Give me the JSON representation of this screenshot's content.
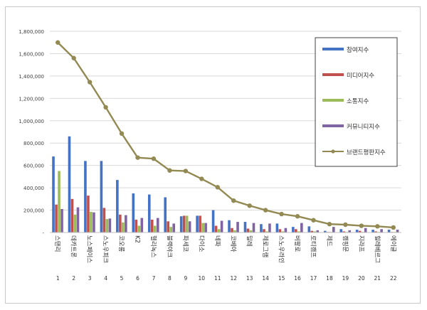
{
  "chart_data": {
    "type": "bar",
    "title": "",
    "xlabel": "",
    "ylabel": "",
    "ylim": [
      0,
      1800000
    ],
    "yticks": [
      "-",
      "200,000",
      "400,000",
      "600,000",
      "800,000",
      "1,000,000",
      "1,200,000",
      "1,400,000",
      "1,600,000",
      "1,800,000"
    ],
    "grid": true,
    "legend_position": "right",
    "ranks": [
      "1",
      "2",
      "3",
      "4",
      "5",
      "6",
      "7",
      "8",
      "9",
      "10",
      "11",
      "12",
      "13",
      "14",
      "15",
      "16",
      "17",
      "18",
      "19",
      "20",
      "21",
      "22"
    ],
    "categories": [
      "스탠리",
      "데카트론",
      "노스페이스",
      "스노우피크",
      "코오롱",
      "K2",
      "헬리녹스",
      "블랙야크",
      "파세코",
      "다이소",
      "네파",
      "코베아",
      "밀레",
      "제로그램",
      "스노우라인",
      "버팔로",
      "로티캠프",
      "제드",
      "캠핑문",
      "지라프",
      "힐레베르그",
      "에이글"
    ],
    "series": [
      {
        "name": "참여지수",
        "kind": "bar",
        "color": "#4472c4",
        "values": [
          680000,
          860000,
          640000,
          640000,
          470000,
          350000,
          340000,
          315000,
          145000,
          150000,
          200000,
          110000,
          95000,
          75000,
          80000,
          50000,
          55000,
          15000,
          30000,
          25000,
          25000,
          25000
        ]
      },
      {
        "name": "미디어지수",
        "kind": "bar",
        "color": "#c0504d",
        "values": [
          250000,
          300000,
          330000,
          220000,
          160000,
          115000,
          115000,
          100000,
          150000,
          150000,
          60000,
          40000,
          35000,
          30000,
          30000,
          30000,
          15000,
          5000,
          10000,
          15000,
          10000,
          5000
        ]
      },
      {
        "name": "소통지수",
        "kind": "bar",
        "color": "#9bbb59",
        "values": [
          550000,
          160000,
          185000,
          120000,
          90000,
          60000,
          60000,
          50000,
          150000,
          85000,
          30000,
          20000,
          20000,
          10000,
          10000,
          10000,
          10000,
          5000,
          5000,
          5000,
          5000,
          5000
        ]
      },
      {
        "name": "커뮤니티지수",
        "kind": "bar",
        "color": "#8064a2",
        "values": [
          210000,
          225000,
          180000,
          125000,
          155000,
          130000,
          130000,
          80000,
          100000,
          85000,
          105000,
          95000,
          85000,
          80000,
          40000,
          85000,
          20000,
          50000,
          20000,
          40000,
          30000,
          25000
        ]
      },
      {
        "name": "브랜드평판지수",
        "kind": "line",
        "color": "#938953",
        "values": [
          1700000,
          1560000,
          1345000,
          1120000,
          885000,
          670000,
          660000,
          555000,
          550000,
          480000,
          405000,
          285000,
          240000,
          200000,
          165000,
          145000,
          110000,
          75000,
          70000,
          60000,
          55000,
          45000
        ]
      }
    ]
  }
}
